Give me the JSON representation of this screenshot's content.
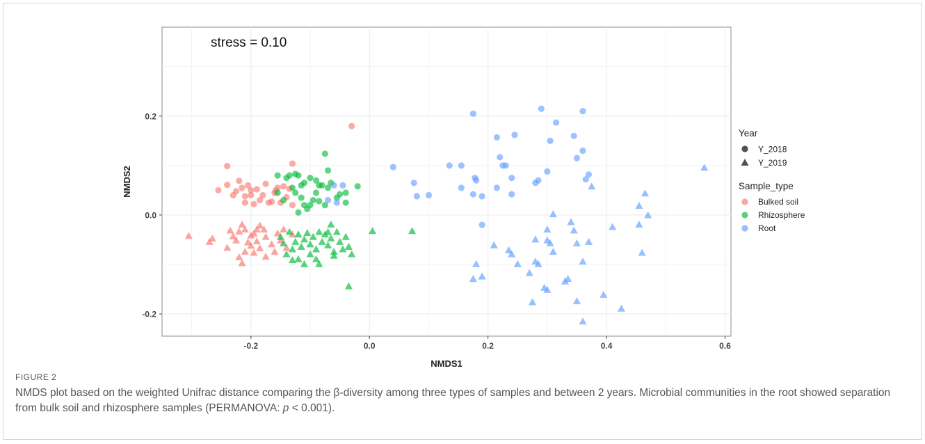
{
  "figure": {
    "label": "FIGURE 2",
    "caption_part1": "NMDS plot based on the weighted Unifrac distance comparing the β-diversity among three types of samples and between 2 years. Microbial communities in the root showed separation from bulk soil and rhizosphere samples (PERMANOVA: ",
    "caption_italic": "p",
    "caption_part2": " < 0.001)."
  },
  "colors": {
    "Bulked soil": "#F8766D",
    "Rhizosphere": "#00BA38",
    "Root": "#619CFF",
    "grid": "#ebebeb",
    "panel_border": "#8c8c8c",
    "legend_key_dark": "#333333"
  },
  "chart_data": {
    "type": "scatter",
    "annotation": "stress = 0.10",
    "xlabel": "NMDS1",
    "ylabel": "NMDS2",
    "xlim": [
      -0.35,
      0.61
    ],
    "ylim": [
      -0.245,
      0.38
    ],
    "xticks": [
      -0.2,
      0.0,
      0.2,
      0.4,
      0.6
    ],
    "xtick_labels": [
      "-0.2",
      "0.0",
      "0.2",
      "0.4",
      "0.6"
    ],
    "yticks": [
      -0.2,
      0.0,
      0.2
    ],
    "ytick_labels": [
      "-0.2",
      "0.0",
      "0.2"
    ],
    "grid": true,
    "legend_position": "right",
    "legend": {
      "shape_title": "Year",
      "shape_items": [
        {
          "label": "Y_2018",
          "shape": "circle"
        },
        {
          "label": "Y_2019",
          "shape": "triangle"
        }
      ],
      "color_title": "Sample_type",
      "color_items": [
        "Bulked soil",
        "Rhizosphere",
        "Root"
      ]
    },
    "series": [
      {
        "name": "Bulked soil",
        "year": "Y_2018",
        "shape": "circle",
        "points": [
          [
            -0.03,
            0.18
          ],
          [
            -0.24,
            0.099
          ],
          [
            -0.255,
            0.05
          ],
          [
            -0.24,
            0.061
          ],
          [
            -0.22,
            0.069
          ],
          [
            -0.215,
            0.055
          ],
          [
            -0.205,
            0.06
          ],
          [
            -0.2,
            0.05
          ],
          [
            -0.19,
            0.052
          ],
          [
            -0.21,
            0.038
          ],
          [
            -0.2,
            0.04
          ],
          [
            -0.21,
            0.025
          ],
          [
            -0.195,
            0.022
          ],
          [
            -0.185,
            0.03
          ],
          [
            -0.18,
            0.04
          ],
          [
            -0.175,
            0.063
          ],
          [
            -0.17,
            0.025
          ],
          [
            -0.165,
            0.027
          ],
          [
            -0.16,
            0.045
          ],
          [
            -0.158,
            0.05
          ],
          [
            -0.155,
            0.055
          ],
          [
            -0.145,
            0.058
          ],
          [
            -0.14,
            0.036
          ],
          [
            -0.135,
            0.053
          ],
          [
            -0.15,
            0.025
          ],
          [
            -0.13,
            0.02
          ],
          [
            -0.13,
            0.104
          ],
          [
            -0.23,
            0.04
          ],
          [
            -0.225,
            0.048
          ]
        ]
      },
      {
        "name": "Bulked soil",
        "year": "Y_2019",
        "shape": "triangle",
        "points": [
          [
            -0.305,
            -0.043
          ],
          [
            -0.27,
            -0.055
          ],
          [
            -0.265,
            -0.048
          ],
          [
            -0.24,
            -0.067
          ],
          [
            -0.235,
            -0.032
          ],
          [
            -0.23,
            -0.044
          ],
          [
            -0.225,
            -0.052
          ],
          [
            -0.22,
            -0.034
          ],
          [
            -0.215,
            -0.02
          ],
          [
            -0.21,
            -0.03
          ],
          [
            -0.21,
            -0.075
          ],
          [
            -0.205,
            -0.056
          ],
          [
            -0.2,
            -0.042
          ],
          [
            -0.2,
            -0.063
          ],
          [
            -0.195,
            -0.038
          ],
          [
            -0.19,
            -0.054
          ],
          [
            -0.185,
            -0.022
          ],
          [
            -0.185,
            -0.068
          ],
          [
            -0.178,
            -0.03
          ],
          [
            -0.175,
            -0.045
          ],
          [
            -0.165,
            -0.06
          ],
          [
            -0.155,
            -0.038
          ],
          [
            -0.15,
            -0.052
          ],
          [
            -0.145,
            -0.03
          ],
          [
            -0.14,
            -0.067
          ],
          [
            -0.215,
            -0.098
          ],
          [
            -0.195,
            -0.077
          ],
          [
            -0.175,
            -0.085
          ],
          [
            -0.16,
            -0.075
          ],
          [
            -0.13,
            -0.04
          ],
          [
            -0.22,
            -0.086
          ],
          [
            -0.19,
            -0.03
          ]
        ]
      },
      {
        "name": "Rhizosphere",
        "year": "Y_2018",
        "shape": "circle",
        "points": [
          [
            -0.075,
            0.124
          ],
          [
            -0.155,
            0.08
          ],
          [
            -0.135,
            0.08
          ],
          [
            -0.125,
            0.083
          ],
          [
            -0.12,
            0.08
          ],
          [
            -0.115,
            0.06
          ],
          [
            -0.11,
            0.065
          ],
          [
            -0.1,
            0.075
          ],
          [
            -0.09,
            0.07
          ],
          [
            -0.08,
            0.06
          ],
          [
            -0.07,
            0.055
          ],
          [
            -0.065,
            0.065
          ],
          [
            -0.05,
            0.042
          ],
          [
            -0.055,
            0.035
          ],
          [
            -0.04,
            0.045
          ],
          [
            -0.04,
            0.025
          ],
          [
            -0.02,
            0.058
          ],
          [
            -0.085,
            0.06
          ],
          [
            -0.09,
            0.045
          ],
          [
            -0.095,
            0.03
          ],
          [
            -0.1,
            0.02
          ],
          [
            -0.105,
            0.012
          ],
          [
            -0.11,
            0.02
          ],
          [
            -0.115,
            0.035
          ],
          [
            -0.125,
            0.045
          ],
          [
            -0.13,
            0.055
          ],
          [
            -0.14,
            0.075
          ],
          [
            -0.145,
            0.03
          ],
          [
            -0.155,
            0.045
          ],
          [
            -0.12,
            0.005
          ],
          [
            -0.07,
            0.09
          ],
          [
            -0.085,
            0.028
          ],
          [
            -0.075,
            0.02
          ]
        ]
      },
      {
        "name": "Rhizosphere",
        "year": "Y_2019",
        "shape": "triangle",
        "points": [
          [
            0.005,
            -0.033
          ],
          [
            0.072,
            -0.033
          ],
          [
            -0.035,
            -0.145
          ],
          [
            -0.03,
            -0.08
          ],
          [
            -0.035,
            -0.065
          ],
          [
            -0.04,
            -0.045
          ],
          [
            -0.05,
            -0.055
          ],
          [
            -0.055,
            -0.035
          ],
          [
            -0.06,
            -0.075
          ],
          [
            -0.065,
            -0.048
          ],
          [
            -0.07,
            -0.062
          ],
          [
            -0.075,
            -0.04
          ],
          [
            -0.08,
            -0.055
          ],
          [
            -0.085,
            -0.035
          ],
          [
            -0.09,
            -0.07
          ],
          [
            -0.095,
            -0.045
          ],
          [
            -0.1,
            -0.06
          ],
          [
            -0.105,
            -0.037
          ],
          [
            -0.11,
            -0.05
          ],
          [
            -0.115,
            -0.065
          ],
          [
            -0.12,
            -0.04
          ],
          [
            -0.125,
            -0.055
          ],
          [
            -0.13,
            -0.07
          ],
          [
            -0.135,
            -0.035
          ],
          [
            -0.14,
            -0.08
          ],
          [
            -0.145,
            -0.058
          ],
          [
            -0.15,
            -0.045
          ],
          [
            -0.12,
            -0.09
          ],
          [
            -0.11,
            -0.1
          ],
          [
            -0.09,
            -0.09
          ],
          [
            -0.06,
            -0.083
          ],
          [
            -0.045,
            -0.07
          ],
          [
            -0.1,
            -0.08
          ],
          [
            -0.085,
            -0.1
          ],
          [
            -0.13,
            -0.092
          ],
          [
            -0.07,
            -0.035
          ],
          [
            -0.065,
            -0.02
          ]
        ]
      },
      {
        "name": "Root",
        "year": "Y_2018",
        "shape": "circle",
        "points": [
          [
            0.04,
            0.097
          ],
          [
            0.075,
            0.065
          ],
          [
            0.08,
            0.038
          ],
          [
            0.1,
            0.04
          ],
          [
            0.135,
            0.1
          ],
          [
            0.155,
            0.055
          ],
          [
            0.155,
            0.1
          ],
          [
            0.175,
            0.205
          ],
          [
            0.175,
            0.042
          ],
          [
            0.178,
            0.075
          ],
          [
            0.18,
            0.07
          ],
          [
            0.19,
            0.038
          ],
          [
            0.19,
            -0.02
          ],
          [
            0.215,
            0.157
          ],
          [
            0.215,
            0.055
          ],
          [
            0.22,
            0.117
          ],
          [
            0.225,
            0.1
          ],
          [
            0.23,
            0.1
          ],
          [
            0.24,
            0.075
          ],
          [
            0.24,
            0.042
          ],
          [
            0.245,
            0.162
          ],
          [
            0.28,
            0.065
          ],
          [
            0.285,
            0.07
          ],
          [
            0.29,
            0.215
          ],
          [
            0.3,
            0.088
          ],
          [
            0.305,
            0.15
          ],
          [
            0.315,
            0.187
          ],
          [
            0.345,
            0.16
          ],
          [
            0.35,
            0.115
          ],
          [
            0.36,
            0.21
          ],
          [
            0.36,
            0.13
          ],
          [
            0.365,
            0.072
          ],
          [
            0.37,
            0.082
          ],
          [
            -0.06,
            0.06
          ],
          [
            -0.045,
            0.06
          ],
          [
            -0.07,
            0.03
          ],
          [
            -0.055,
            0.025
          ]
        ]
      },
      {
        "name": "Root",
        "year": "Y_2019",
        "shape": "triangle",
        "points": [
          [
            0.565,
            0.095
          ],
          [
            0.375,
            0.057
          ],
          [
            0.465,
            0.043
          ],
          [
            0.455,
            0.018
          ],
          [
            0.47,
            -0.001
          ],
          [
            0.455,
            -0.02
          ],
          [
            0.41,
            -0.025
          ],
          [
            0.46,
            -0.077
          ],
          [
            0.31,
            0.001
          ],
          [
            0.34,
            -0.015
          ],
          [
            0.3,
            -0.03
          ],
          [
            0.345,
            -0.032
          ],
          [
            0.3,
            -0.052
          ],
          [
            0.305,
            -0.058
          ],
          [
            0.28,
            -0.05
          ],
          [
            0.35,
            -0.058
          ],
          [
            0.37,
            -0.055
          ],
          [
            0.21,
            -0.062
          ],
          [
            0.235,
            -0.072
          ],
          [
            0.24,
            -0.08
          ],
          [
            0.31,
            -0.075
          ],
          [
            0.36,
            -0.095
          ],
          [
            0.28,
            -0.095
          ],
          [
            0.285,
            -0.1
          ],
          [
            0.25,
            -0.1
          ],
          [
            0.18,
            -0.1
          ],
          [
            0.19,
            -0.125
          ],
          [
            0.175,
            -0.13
          ],
          [
            0.27,
            -0.118
          ],
          [
            0.335,
            -0.13
          ],
          [
            0.33,
            -0.135
          ],
          [
            0.295,
            -0.148
          ],
          [
            0.3,
            -0.152
          ],
          [
            0.395,
            -0.162
          ],
          [
            0.275,
            -0.177
          ],
          [
            0.35,
            -0.175
          ],
          [
            0.425,
            -0.19
          ],
          [
            0.36,
            -0.216
          ]
        ]
      }
    ]
  }
}
